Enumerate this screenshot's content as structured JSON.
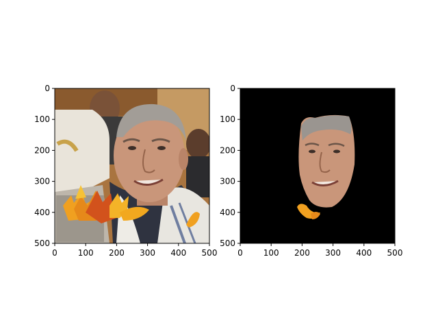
{
  "figure": {
    "panels": [
      {
        "id": "original",
        "content": "photo",
        "x_ticks": [
          "0",
          "100",
          "200",
          "300",
          "400",
          "500"
        ],
        "y_ticks": [
          "0",
          "100",
          "200",
          "300",
          "400",
          "500"
        ],
        "xlim": [
          0,
          500
        ],
        "ylim": [
          500,
          0
        ]
      },
      {
        "id": "masked",
        "content": "face-mask-on-black",
        "x_ticks": [
          "0",
          "100",
          "200",
          "300",
          "400",
          "500"
        ],
        "y_ticks": [
          "0",
          "100",
          "200",
          "300",
          "400",
          "500"
        ],
        "xlim": [
          0,
          500
        ],
        "ylim": [
          500,
          0
        ]
      }
    ]
  },
  "colors": {
    "background_black": "#000000",
    "skin": "#c9967a",
    "hair": "#9a9590",
    "leaf_orange": "#f0a020",
    "leaf_red": "#d2521c",
    "wall": "#b07a45",
    "shawl": "#ece9e2"
  }
}
